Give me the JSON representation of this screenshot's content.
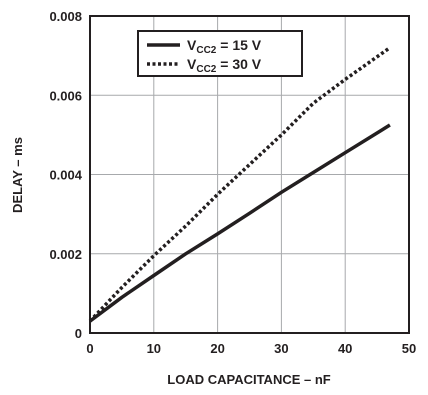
{
  "chart_data": {
    "type": "line",
    "title": "",
    "xlabel": "LOAD CAPACITANCE – nF",
    "ylabel": "DELAY – ms",
    "xlim": [
      0,
      50
    ],
    "ylim": [
      0,
      0.008
    ],
    "x_ticks": [
      "0",
      "10",
      "20",
      "30",
      "40",
      "50"
    ],
    "y_ticks": [
      "0",
      "0.002",
      "0.004",
      "0.006",
      "0.008"
    ],
    "grid": true,
    "legend_position": "top-center",
    "series": [
      {
        "name": "V_CC2 = 15 V",
        "legend_main": "V",
        "legend_sub": "CC2",
        "legend_value": " = 15 V",
        "style": "solid",
        "color": "#231f20",
        "x": [
          0,
          5,
          10,
          15,
          20,
          25,
          30,
          35,
          40,
          47
        ],
        "y": [
          0.0003,
          0.0009,
          0.00145,
          0.002,
          0.0025,
          0.00302,
          0.00355,
          0.00405,
          0.00455,
          0.00525
        ]
      },
      {
        "name": "V_CC2 = 30 V",
        "legend_main": "V",
        "legend_sub": "CC2",
        "legend_value": " = 30 V",
        "style": "dotted",
        "color": "#231f20",
        "x": [
          0,
          5,
          10,
          15,
          20,
          25,
          30,
          35,
          40,
          47
        ],
        "y": [
          0.0003,
          0.00115,
          0.00195,
          0.0027,
          0.0035,
          0.00425,
          0.005,
          0.0058,
          0.0064,
          0.0072
        ]
      }
    ]
  }
}
